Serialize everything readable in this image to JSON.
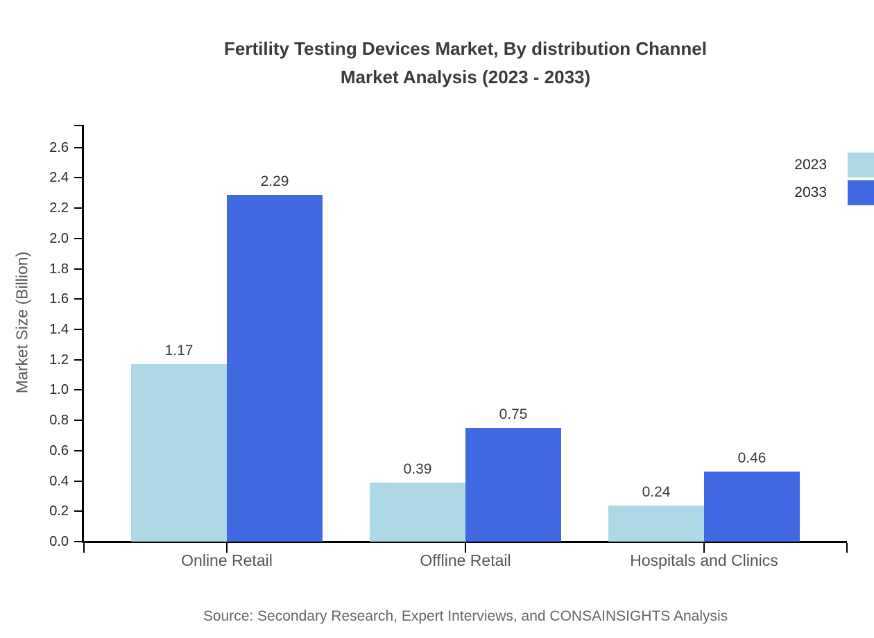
{
  "title": {
    "line1": "Fertility Testing Devices Market, By distribution Channel",
    "line2": "Market Analysis (2023 - 2033)"
  },
  "source_note": "Source: Secondary Research, Expert Interviews, and CONSAINSIGHTS Analysis",
  "chart_data": {
    "type": "bar",
    "title": "Fertility Testing Devices Market, By distribution Channel Market Analysis (2023 - 2033)",
    "categories": [
      "Online Retail",
      "Offline Retail",
      "Hospitals and Clinics"
    ],
    "series": [
      {
        "name": "2023",
        "color": "#add8e6",
        "values": [
          1.17,
          0.39,
          0.24
        ]
      },
      {
        "name": "2033",
        "color": "#4169e1",
        "values": [
          2.29,
          0.75,
          0.46
        ]
      }
    ],
    "xlabel": "",
    "ylabel": "Market Size (Billion)",
    "ylim": [
      0,
      2.75
    ],
    "yticks": [
      0.0,
      0.2,
      0.4,
      0.6,
      0.8,
      1.0,
      1.2,
      1.4,
      1.6,
      1.8,
      2.0,
      2.2,
      2.4,
      2.6
    ],
    "grid": false,
    "legend_position": "upper-right-outside",
    "value_labels": true,
    "axis_color": "#000000"
  }
}
